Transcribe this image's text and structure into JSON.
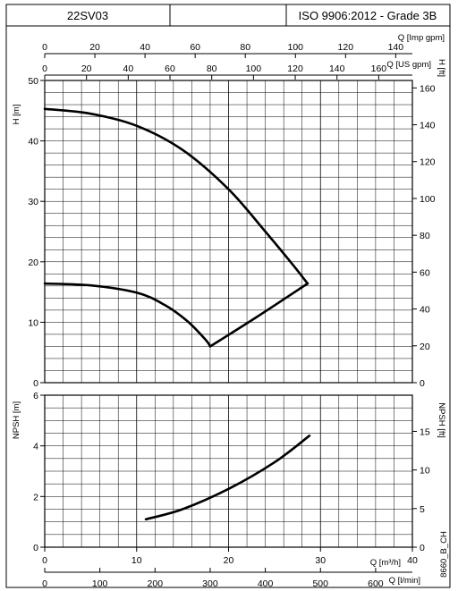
{
  "header": {
    "model": "22SV03",
    "standard": "ISO 9906:2012 - Grade 3B"
  },
  "footer": {
    "code": "8660_B_CH"
  },
  "chart_data": [
    {
      "type": "line",
      "name": "head",
      "xlabel": "Q [m³/h]",
      "xlim": [
        0,
        40
      ],
      "x_ticks": [
        0,
        10,
        20,
        30,
        40
      ],
      "ylabel": "H [m]",
      "ylim": [
        0,
        50
      ],
      "y_ticks": [
        0,
        10,
        20,
        30,
        40,
        50
      ],
      "ylabel_right": "H [ft]",
      "y_right_ticks": [
        0,
        20,
        40,
        60,
        80,
        100,
        120,
        140,
        160
      ],
      "top_axes": [
        {
          "label": "Q [Imp gpm]",
          "ticks": [
            0,
            20,
            40,
            60,
            80,
            100,
            120,
            140
          ]
        },
        {
          "label": "Q [US gpm]",
          "ticks": [
            0,
            20,
            40,
            60,
            80,
            100,
            120,
            140,
            160
          ]
        }
      ],
      "grid": true,
      "series": [
        {
          "x": [
            0,
            5,
            10,
            15,
            20,
            24,
            27,
            28.6
          ],
          "y": [
            45.3,
            44.5,
            42.5,
            38.5,
            32.0,
            25.0,
            19.5,
            16.4
          ]
        },
        {
          "x": [
            0,
            5,
            10,
            13,
            15.5,
            17.5,
            18.0,
            23.0,
            28.6
          ],
          "y": [
            16.4,
            16.1,
            14.9,
            12.9,
            10.2,
            7.1,
            6.0,
            10.8,
            16.4
          ]
        }
      ]
    },
    {
      "type": "line",
      "name": "npsh",
      "xlabel": "Q [m³/h]",
      "xlim": [
        0,
        40
      ],
      "x_ticks": [
        0,
        10,
        20,
        30,
        40
      ],
      "ylabel": "NPSH [m]",
      "ylim": [
        0,
        6
      ],
      "y_ticks": [
        0,
        2,
        4,
        6
      ],
      "ylabel_right": "NPSH [ft]",
      "y_right_ticks": [
        0,
        5,
        10,
        15
      ],
      "bottom_axis": {
        "label": "Q [l/min]",
        "ticks": [
          0,
          100,
          200,
          300,
          400,
          500,
          600
        ]
      },
      "grid": true,
      "series": [
        {
          "x": [
            11,
            15,
            20,
            25,
            28.8
          ],
          "y": [
            1.1,
            1.5,
            2.3,
            3.35,
            4.4
          ]
        }
      ]
    }
  ]
}
